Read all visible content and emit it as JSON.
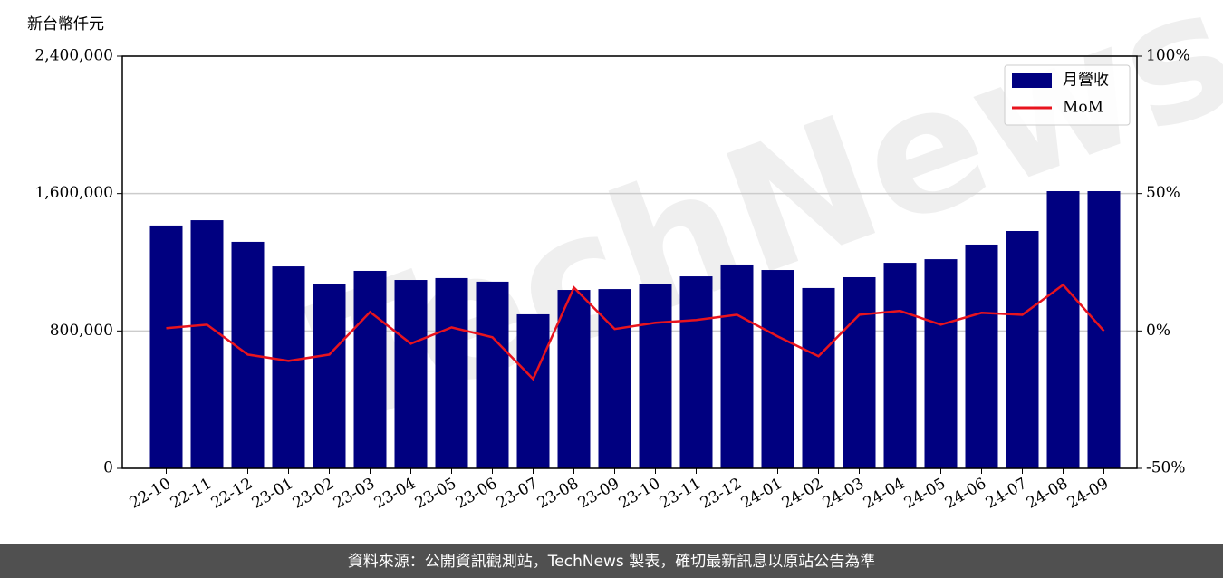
{
  "chart_data": {
    "type": "bar",
    "y_label": "新台幣仟元",
    "watermark": "TechNews",
    "source": "資料來源：公開資訊觀測站，TechNews 製表，確切最新訊息以原站公告為準",
    "categories": [
      "22-10",
      "22-11",
      "22-12",
      "23-01",
      "23-02",
      "23-03",
      "23-04",
      "23-05",
      "23-06",
      "23-07",
      "23-08",
      "23-09",
      "23-10",
      "23-11",
      "23-12",
      "24-01",
      "24-02",
      "24-03",
      "24-04",
      "24-05",
      "24-06",
      "24-07",
      "24-08",
      "24-09"
    ],
    "series": [
      {
        "name": "月營收",
        "type": "bar",
        "color": "#000080",
        "values": [
          1414000,
          1445000,
          1319000,
          1176000,
          1076000,
          1150000,
          1097000,
          1108000,
          1087000,
          897000,
          1039000,
          1044000,
          1076000,
          1118000,
          1187000,
          1155000,
          1050000,
          1113000,
          1197000,
          1218000,
          1303000,
          1382000,
          1614000,
          1614000
        ]
      },
      {
        "name": "MoM",
        "type": "line",
        "axis": "y2",
        "color": "#e8141e",
        "values": [
          1,
          2.3,
          -8.6,
          -10.9,
          -8.6,
          6.9,
          -4.6,
          1.3,
          -2.3,
          -17.5,
          15.8,
          0.7,
          3,
          4,
          5.9,
          -2,
          -9.2,
          5.9,
          7.3,
          2.3,
          6.6,
          5.9,
          16.8,
          0
        ]
      }
    ],
    "ylim": [
      0,
      2400000
    ],
    "yticks": [
      0,
      {
        "value": 800000,
        "label": "800,000"
      },
      {
        "value": 1600000,
        "label": "1,600,000"
      },
      {
        "value": 2400000,
        "label": "2,400,000"
      }
    ],
    "y2lim": [
      -50,
      100
    ],
    "y2ticks": [
      {
        "value": -50,
        "label": "-50%"
      },
      {
        "value": 0,
        "label": "0%"
      },
      {
        "value": 50,
        "label": "50%"
      },
      {
        "value": 100,
        "label": "100%"
      }
    ],
    "grid": true,
    "legend": "upper right"
  }
}
